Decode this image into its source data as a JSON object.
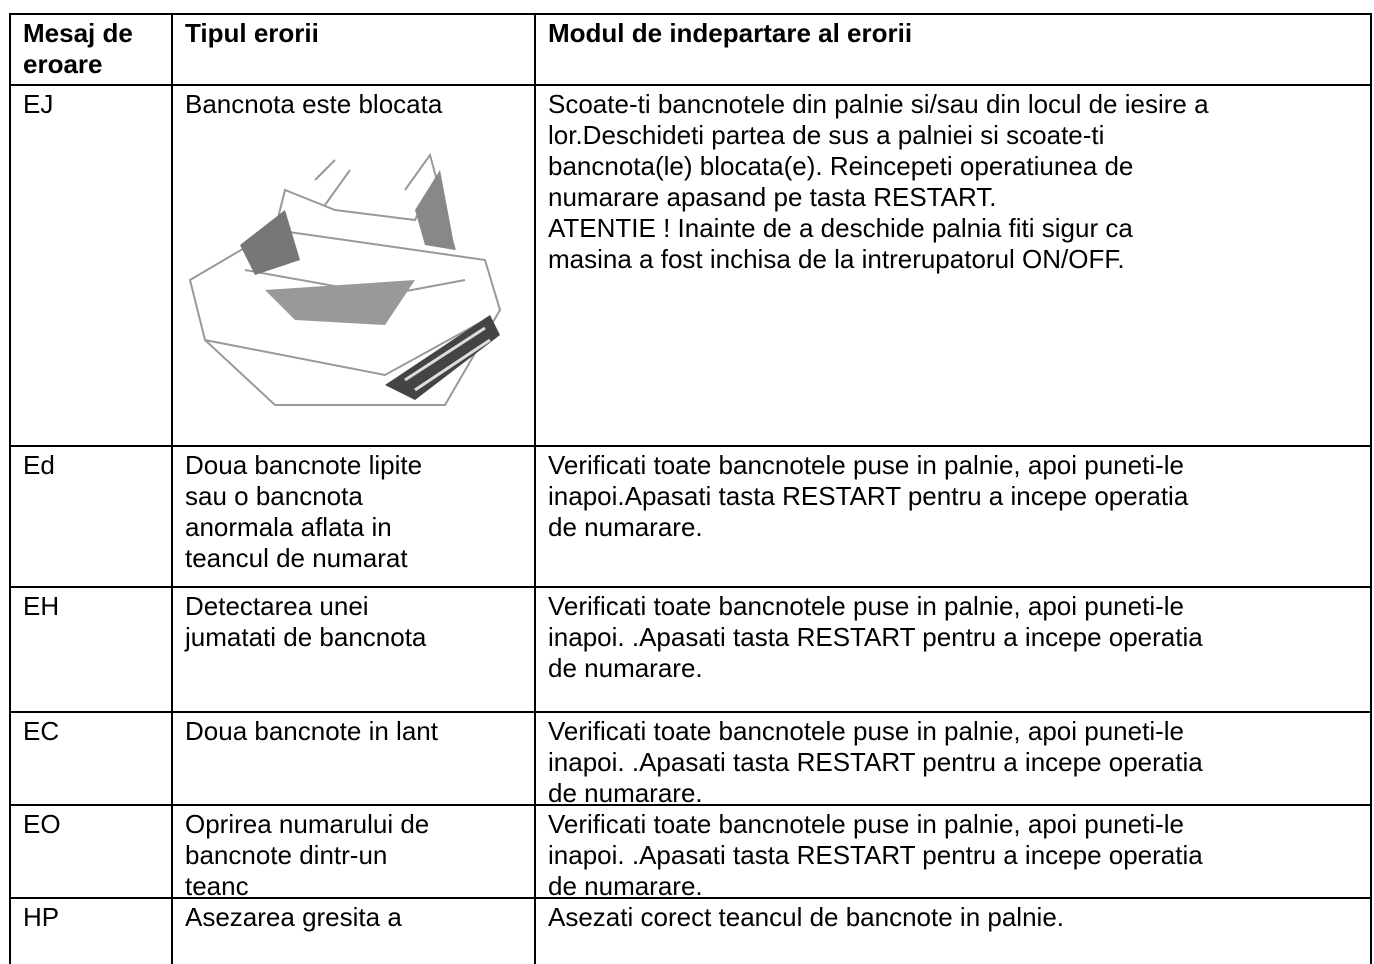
{
  "table": {
    "header": [
      [
        "Mesaj de",
        "eroare"
      ],
      [
        "Tipul erorii"
      ],
      [
        "Modul de indepartare al erorii"
      ]
    ],
    "rows": [
      [
        [
          "EJ"
        ],
        [
          "Bancnota este blocata"
        ],
        [
          "Scoate-ti bancnotele din palnie si/sau din locul de iesire a",
          "lor.Deschideti partea de sus a palniei si scoate-ti",
          "bancnota(le) blocata(e). Reincepeti operatiunea de",
          "numarare apasand pe tasta RESTART.",
          "ATENTIE ! Inainte de a deschide palnia fiti sigur ca",
          "masina a fost inchisa de la intrerupatorul ON/OFF."
        ]
      ],
      [
        [
          "Ed"
        ],
        [
          "Doua bancnote lipite",
          "sau o bancnota",
          "anormala aflata in",
          "teancul de numarat"
        ],
        [
          "Verificati toate bancnotele puse in palnie, apoi puneti-le",
          "inapoi.Apasati tasta RESTART pentru a incepe operatia",
          "de numarare."
        ]
      ],
      [
        [
          "EH"
        ],
        [
          "Detectarea unei",
          "jumatati de bancnota"
        ],
        [
          "Verificati toate bancnotele puse in palnie, apoi puneti-le",
          "inapoi. .Apasati tasta RESTART pentru a incepe operatia",
          "de numarare."
        ]
      ],
      [
        [
          "EC"
        ],
        [
          "Doua bancnote in lant"
        ],
        [
          "Verificati toate bancnotele puse in palnie, apoi puneti-le",
          "inapoi. .Apasati tasta RESTART pentru a incepe operatia",
          "de numarare."
        ]
      ],
      [
        [
          "EO"
        ],
        [
          "Oprirea numarului de",
          "bancnote dintr-un",
          "teanc"
        ],
        [
          "Verificati toate bancnotele puse in palnie, apoi puneti-le",
          "inapoi. .Apasati tasta RESTART pentru a incepe operatia",
          "de numarare."
        ]
      ],
      [
        [
          "HP"
        ],
        [
          "Asezarea gresita a"
        ],
        [
          "Asezati corect teancul de bancnote in palnie."
        ]
      ]
    ]
  }
}
